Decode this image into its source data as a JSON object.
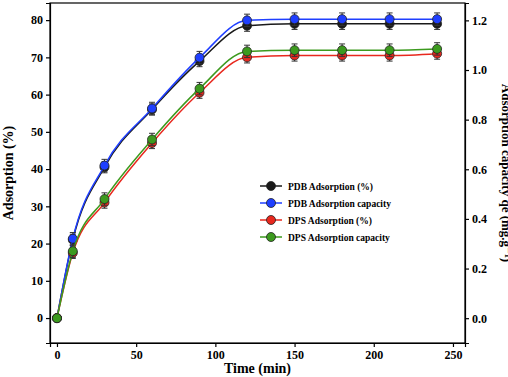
{
  "chart_data": {
    "type": "line",
    "x_label": "Time (min)",
    "y_label": "Adsorption (%)",
    "y2_label": "Adsorption capacity qe (mg.g⁻¹)",
    "x": [
      0,
      10,
      30,
      60,
      90,
      120,
      150,
      180,
      210,
      240
    ],
    "xlim": [
      -4.4,
      257.6
    ],
    "xticks": [
      0,
      50,
      100,
      150,
      200,
      250
    ],
    "ylim": [
      -6.7,
      84.6
    ],
    "yticks": [
      0,
      10,
      20,
      30,
      40,
      50,
      60,
      70,
      80
    ],
    "y2lim": [
      -0.1,
      1.27
    ],
    "y2ticks": [
      {
        "value": 0,
        "label": "0.0"
      },
      0.2,
      0.4,
      0.6,
      0.8,
      {
        "value": 1,
        "label": "1.0"
      },
      1.2
    ],
    "grid": false,
    "legend": "right",
    "series": [
      {
        "name": "PDB Adsorption (%)",
        "color": "#1a1a1a",
        "marker": "circle",
        "line_style": "solid",
        "values": [
          0,
          21,
          40.5,
          56,
          69,
          78.5,
          79,
          79,
          79,
          79
        ],
        "errors": [
          0,
          1.5,
          1.5,
          1.5,
          1.5,
          1.5,
          1.5,
          1.5,
          1.5,
          1.5
        ]
      },
      {
        "name": "PDB Adsorption capacity",
        "color": "#1f3fff",
        "marker": "circle",
        "line_style": "solid",
        "axis": "y2",
        "values": [
          0,
          0.32,
          0.615,
          0.845,
          1.05,
          1.2,
          1.205,
          1.205,
          1.205,
          1.205
        ],
        "errors": [
          0,
          0.025,
          0.025,
          0.025,
          0.025,
          0.025,
          0.025,
          0.025,
          0.025,
          0.025
        ]
      },
      {
        "name": "DPS Adsorption (%)",
        "color": "#e8281e",
        "marker": "circle",
        "line_style": "solid",
        "values": [
          0,
          17.5,
          31,
          47,
          60.5,
          70,
          70.5,
          70.5,
          70.5,
          71
        ],
        "errors": [
          0,
          1.5,
          1.5,
          1.5,
          1.5,
          1.5,
          1.5,
          1.5,
          1.5,
          1.5
        ]
      },
      {
        "name": "DPS Adsorption capacity",
        "color": "#3c9a1e",
        "marker": "circle",
        "line_style": "solid",
        "axis": "y2",
        "values": [
          0,
          0.27,
          0.48,
          0.72,
          0.925,
          1.075,
          1.08,
          1.08,
          1.08,
          1.085
        ],
        "errors": [
          0,
          0.025,
          0.025,
          0.025,
          0.025,
          0.025,
          0.025,
          0.025,
          0.025,
          0.025
        ]
      }
    ]
  }
}
